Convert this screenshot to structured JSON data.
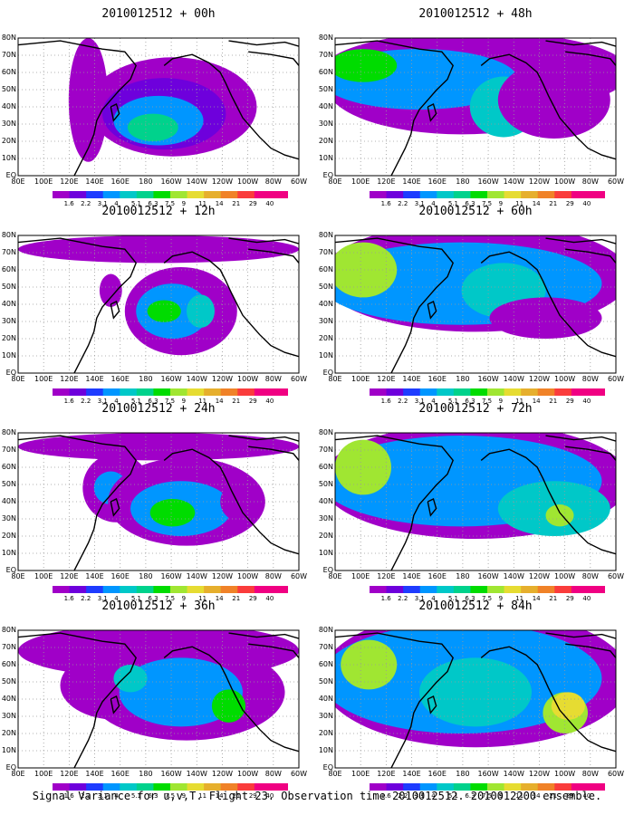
{
  "caption": "Signal Variance for u,v,T. Flight 23. Observation time 2010012512. 2010012200 ensemble.",
  "lat_labels": [
    "80N",
    "70N",
    "60N",
    "50N",
    "40N",
    "30N",
    "20N",
    "10N",
    "EQ"
  ],
  "lon_labels": [
    "80E",
    "100E",
    "120E",
    "140E",
    "160E",
    "180",
    "160W",
    "140W",
    "120W",
    "100W",
    "80W",
    "60W"
  ],
  "colorbar": {
    "levels": [
      "1.6",
      "2.2",
      "3.1",
      "4",
      "5.1",
      "6.3",
      "7.5",
      "9",
      "11",
      "14",
      "21",
      "29",
      "40"
    ],
    "colors": [
      "#a000c8",
      "#6e00dc",
      "#1e3cff",
      "#0096ff",
      "#00c8c8",
      "#00d28c",
      "#00dc00",
      "#a0e632",
      "#e6dc32",
      "#e6af2d",
      "#f08228",
      "#fa3c3c",
      "#f00082"
    ]
  },
  "map_style": {
    "land_color": "#000000",
    "grid_color": "#9a9a9a",
    "background": "#ffffff"
  },
  "panels": [
    {
      "title": "2010012512 + 00h",
      "column": "left",
      "row": 0
    },
    {
      "title": "2010012512 + 48h",
      "column": "right",
      "row": 0
    },
    {
      "title": "2010012512 + 12h",
      "column": "left",
      "row": 1
    },
    {
      "title": "2010012512 + 60h",
      "column": "right",
      "row": 1
    },
    {
      "title": "2010012512 + 24h",
      "column": "left",
      "row": 2
    },
    {
      "title": "2010012512 + 72h",
      "column": "right",
      "row": 2
    },
    {
      "title": "2010012512 + 36h",
      "column": "left",
      "row": 3
    },
    {
      "title": "2010012512 + 84h",
      "column": "right",
      "row": 3
    }
  ]
}
